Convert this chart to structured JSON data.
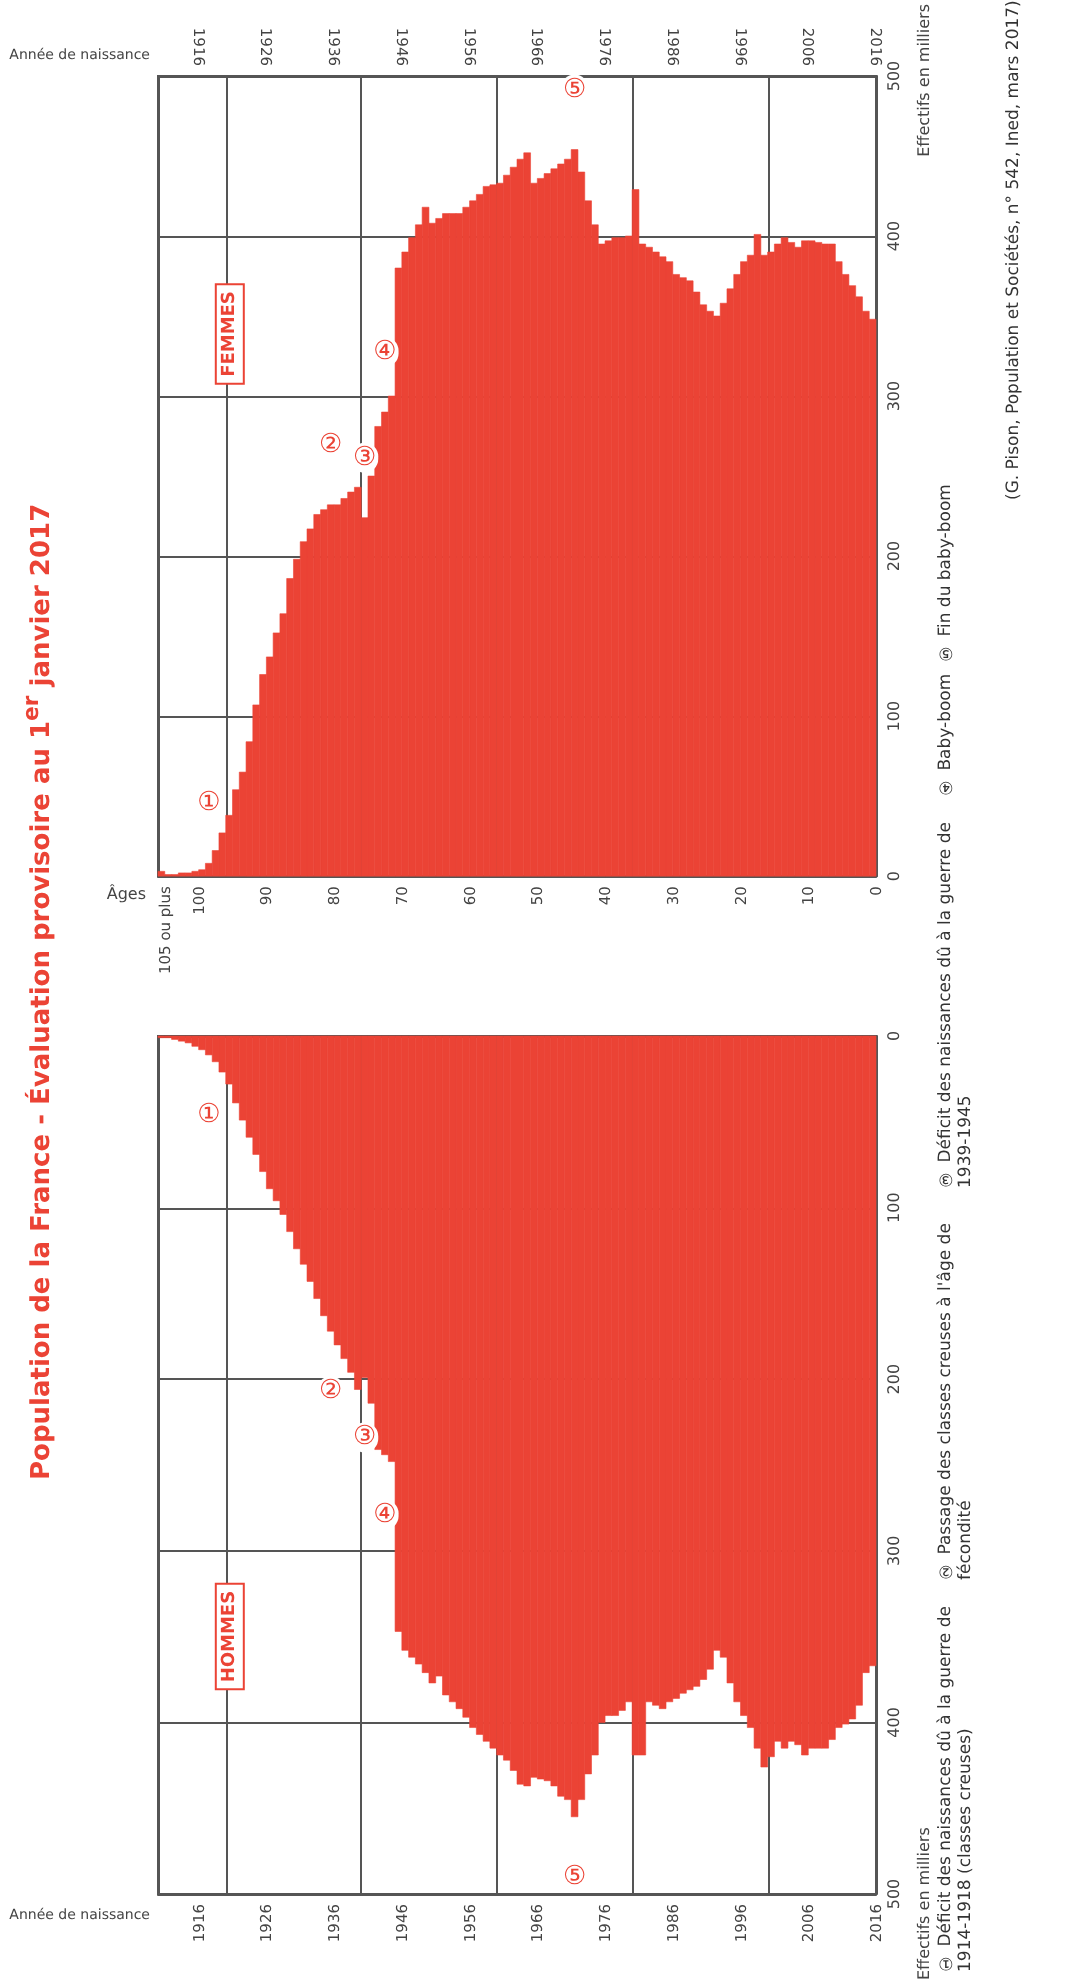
{
  "chart_data": [
    {
      "type": "histogram",
      "title": "Population de la France - Évaluation provisoire au 1$^{er}$ janvier 2017",
      "subtitle": "FEMMES",
      "xlabel": "Âges",
      "ylabel": "Effectifs en milliers",
      "x2label": "Année de naissance",
      "color": "#eb4335",
      "grid": true,
      "bins": [
        0,
        1,
        2,
        3,
        4,
        5,
        6,
        7,
        8,
        9,
        10,
        11,
        12,
        13,
        14,
        15,
        16,
        17,
        18,
        19,
        20,
        21,
        22,
        23,
        24,
        25,
        26,
        27,
        28,
        29,
        30,
        31,
        32,
        33,
        34,
        35,
        36,
        37,
        38,
        39,
        40,
        41,
        42,
        43,
        44,
        45,
        46,
        47,
        48,
        49,
        50,
        51,
        52,
        53,
        54,
        55,
        56,
        57,
        58,
        59,
        60,
        61,
        62,
        63,
        64,
        65,
        66,
        67,
        68,
        69,
        70,
        71,
        72,
        73,
        74,
        75,
        76,
        77,
        78,
        79,
        80,
        81,
        82,
        83,
        84,
        85,
        86,
        87,
        88,
        89,
        90,
        91,
        92,
        93,
        94,
        95,
        96,
        97,
        98,
        99,
        100,
        101,
        102,
        103,
        104,
        105,
        106
      ],
      "values": [
        348,
        353,
        362,
        369,
        376,
        384,
        395,
        395,
        396,
        397,
        397,
        393,
        396,
        399,
        395,
        390,
        388,
        401,
        388,
        384,
        376,
        367,
        358,
        350,
        353,
        357,
        365,
        372,
        374,
        376,
        384,
        387,
        390,
        393,
        395,
        429,
        400,
        399,
        399,
        397,
        395,
        407,
        422,
        440,
        454,
        448,
        445,
        442,
        439,
        436,
        433,
        452,
        448,
        443,
        438,
        433,
        432,
        431,
        426,
        422,
        418,
        414,
        414,
        414,
        411,
        408,
        418,
        407,
        399,
        390,
        380,
        300,
        290,
        281,
        250,
        224,
        243,
        240,
        236,
        232,
        232,
        229,
        226,
        217,
        209,
        198,
        186,
        164,
        152,
        137,
        126,
        107,
        84,
        65,
        54,
        38,
        27,
        16,
        8,
        4,
        3,
        2,
        2,
        1,
        1,
        3
      ],
      "xlim": [
        106,
        0
      ],
      "xticks": [
        0,
        10,
        20,
        30,
        40,
        50,
        60,
        70,
        80,
        90,
        100,
        {
          "value": 105,
          "label": "105 ou plus"
        }
      ],
      "ylim": [
        0,
        500
      ],
      "yticks": [
        0,
        100,
        200,
        300,
        400,
        500
      ],
      "x2lim": [
        1910,
        2016
      ],
      "x2ticks": [
        1916,
        1926,
        1936,
        1946,
        1956,
        1966,
        1976,
        1986,
        1996,
        2006,
        2016
      ],
      "annotations": [
        {
          "text": "①",
          "x": 98.5,
          "y": 8
        },
        {
          "text": "②",
          "x": 80.5,
          "y": 232
        },
        {
          "text": "③",
          "x": 75.5,
          "y": 224
        },
        {
          "text": "④",
          "x": 72.5,
          "y": 290
        },
        {
          "text": "⑤",
          "x": 44.5,
          "y": 454
        }
      ]
    },
    {
      "type": "histogram",
      "subtitle": "HOMMES",
      "xlabel": "Année de naissance",
      "ylabel": "Effectifs en milliers",
      "color": "#eb4335",
      "grid": true,
      "bins": [
        1910,
        1911,
        1912,
        1913,
        1914,
        1915,
        1916,
        1917,
        1918,
        1919,
        1920,
        1921,
        1922,
        1923,
        1924,
        1925,
        1926,
        1927,
        1928,
        1929,
        1930,
        1931,
        1932,
        1933,
        1934,
        1935,
        1936,
        1937,
        1938,
        1939,
        1940,
        1941,
        1942,
        1943,
        1944,
        1945,
        1946,
        1947,
        1948,
        1949,
        1950,
        1951,
        1952,
        1953,
        1954,
        1955,
        1956,
        1957,
        1958,
        1959,
        1960,
        1961,
        1962,
        1963,
        1964,
        1965,
        1966,
        1967,
        1968,
        1969,
        1970,
        1971,
        1972,
        1973,
        1974,
        1975,
        1976,
        1977,
        1978,
        1979,
        1980,
        1981,
        1982,
        1983,
        1984,
        1985,
        1986,
        1987,
        1988,
        1989,
        1990,
        1991,
        1992,
        1993,
        1994,
        1995,
        1996,
        1997,
        1998,
        1999,
        2000,
        2001,
        2002,
        2003,
        2004,
        2005,
        2006,
        2007,
        2008,
        2009,
        2010,
        2011,
        2012,
        2013,
        2014,
        2015,
        2016
      ],
      "values": [
        1,
        1,
        2,
        3,
        4,
        6,
        8,
        11,
        15,
        21,
        28,
        39,
        49,
        59,
        69,
        79,
        89,
        96,
        104,
        114,
        124,
        133,
        143,
        153,
        163,
        172,
        180,
        188,
        196,
        206,
        199,
        214,
        241,
        244,
        248,
        347,
        358,
        362,
        366,
        371,
        377,
        373,
        384,
        388,
        392,
        397,
        403,
        407,
        411,
        415,
        419,
        422,
        428,
        436,
        437,
        432,
        433,
        434,
        437,
        443,
        445,
        455,
        445,
        430,
        419,
        400,
        396,
        396,
        393,
        388,
        419,
        419,
        388,
        390,
        392,
        388,
        386,
        383,
        381,
        379,
        375,
        369,
        358,
        362,
        377,
        388,
        396,
        403,
        415,
        426,
        420,
        411,
        415,
        411,
        413,
        419,
        415,
        415,
        415,
        410,
        403,
        401,
        398,
        390,
        371,
        367
      ],
      "xlim": [
        1910,
        2016
      ],
      "xticks": [
        1916,
        1926,
        1936,
        1946,
        1956,
        1966,
        1976,
        1986,
        1996,
        2006,
        2016
      ],
      "ylim": [
        500,
        0
      ],
      "yticks": [
        0,
        100,
        200,
        300,
        400,
        500
      ],
      "annotations": [
        {
          "text": "①",
          "x": 1917.5,
          "y": 11
        },
        {
          "text": "②",
          "x": 1935.5,
          "y": 172
        },
        {
          "text": "③",
          "x": 1940.5,
          "y": 199
        },
        {
          "text": "④",
          "x": 1943.5,
          "y": 244
        },
        {
          "text": "⑤",
          "x": 1971.5,
          "y": 455
        },
        "① Déficit des naissances dû à la guerre de 1914-1918 (classes creuses)",
        "② Passage des classes creuses à l'âge de fécondité",
        "③ Déficit des naissances dû à la guerre de 1939-1945",
        "④ Baby-boom",
        "⑤ Fin du baby-boom",
        "(G. Pison, Population et Sociétés, n° 542, Ined, mars 2017)"
      ]
    }
  ]
}
